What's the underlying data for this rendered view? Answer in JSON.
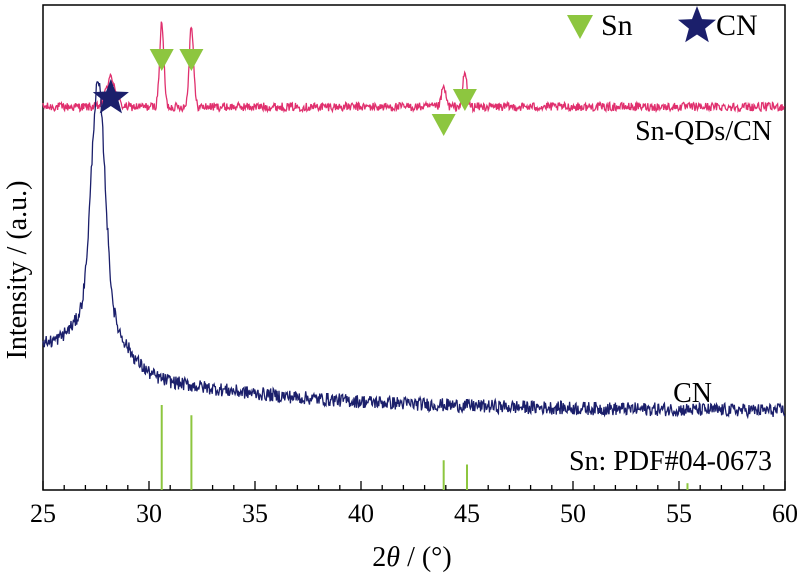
{
  "chart_data": {
    "type": "line",
    "xlabel": "2θ / (°)",
    "ylabel": "Intensity / (a.u.)",
    "xlim": [
      25,
      60
    ],
    "x_ticks": [
      "25",
      "30",
      "35",
      "40",
      "45",
      "50",
      "55",
      "60"
    ],
    "y_ticks_labeled": false,
    "grid": false,
    "legend": {
      "placement": "top-right",
      "entries": [
        {
          "label": "Sn",
          "marker": "down-triangle",
          "color": "#8dc63f"
        },
        {
          "label": "CN",
          "marker": "star",
          "color": "#1b1f6b"
        }
      ]
    },
    "series": [
      {
        "name": "Sn-QDs/CN",
        "color": "#e0306e",
        "baseline_relative": 0.79,
        "peaks": [
          {
            "x": 28.2,
            "height": 0.06
          },
          {
            "x": 30.6,
            "height": 0.17
          },
          {
            "x": 32.0,
            "height": 0.17
          },
          {
            "x": 43.9,
            "height": 0.04
          },
          {
            "x": 44.9,
            "height": 0.07
          }
        ],
        "label": "Sn-QDs/CN"
      },
      {
        "name": "CN",
        "color": "#1b1f6b",
        "baseline_relative": 0.16,
        "peaks": [
          {
            "x": 27.6,
            "height": 0.66
          }
        ],
        "label": "CN"
      }
    ],
    "reference_pattern": {
      "name": "Sn: PDF#04-0673",
      "color": "#8dc63f",
      "lines": [
        {
          "x": 30.6,
          "rel_intensity": 1.0
        },
        {
          "x": 32.0,
          "rel_intensity": 0.88
        },
        {
          "x": 43.9,
          "rel_intensity": 0.35
        },
        {
          "x": 45.0,
          "rel_intensity": 0.3
        },
        {
          "x": 55.4,
          "rel_intensity": 0.08
        }
      ]
    },
    "markers": {
      "sn_triangles_x": [
        30.6,
        32.0,
        43.9,
        44.9
      ],
      "cn_star_x": [
        28.2
      ]
    }
  }
}
